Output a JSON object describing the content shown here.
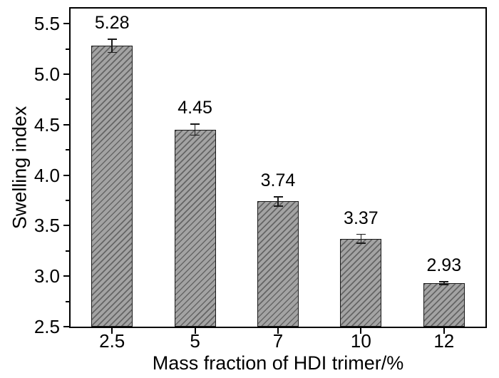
{
  "figure": {
    "background": "#ffffff",
    "axis_color": "#000000"
  },
  "chart_data": {
    "type": "bar",
    "title": "",
    "xlabel": "Mass fraction of HDI trimer/%",
    "ylabel": "Swelling index",
    "categories": [
      "2.5",
      "5",
      "7",
      "10",
      "12"
    ],
    "values": [
      5.28,
      4.45,
      3.74,
      3.37,
      2.93
    ],
    "errors": [
      0.07,
      0.06,
      0.05,
      0.05,
      0.02
    ],
    "data_labels": [
      "5.28",
      "4.45",
      "3.74",
      "3.37",
      "2.93"
    ],
    "ylim": [
      2.5,
      5.65
    ],
    "yticks": [
      "2.5",
      "3.0",
      "3.5",
      "4.0",
      "4.5",
      "5.0",
      "5.5"
    ],
    "ytick_step": 0.5,
    "bar_color": "#a3a3a3",
    "hatch_color": "#3c3c3c",
    "hatch_style": "diagonal-forward",
    "grid": false,
    "legend": "none"
  }
}
